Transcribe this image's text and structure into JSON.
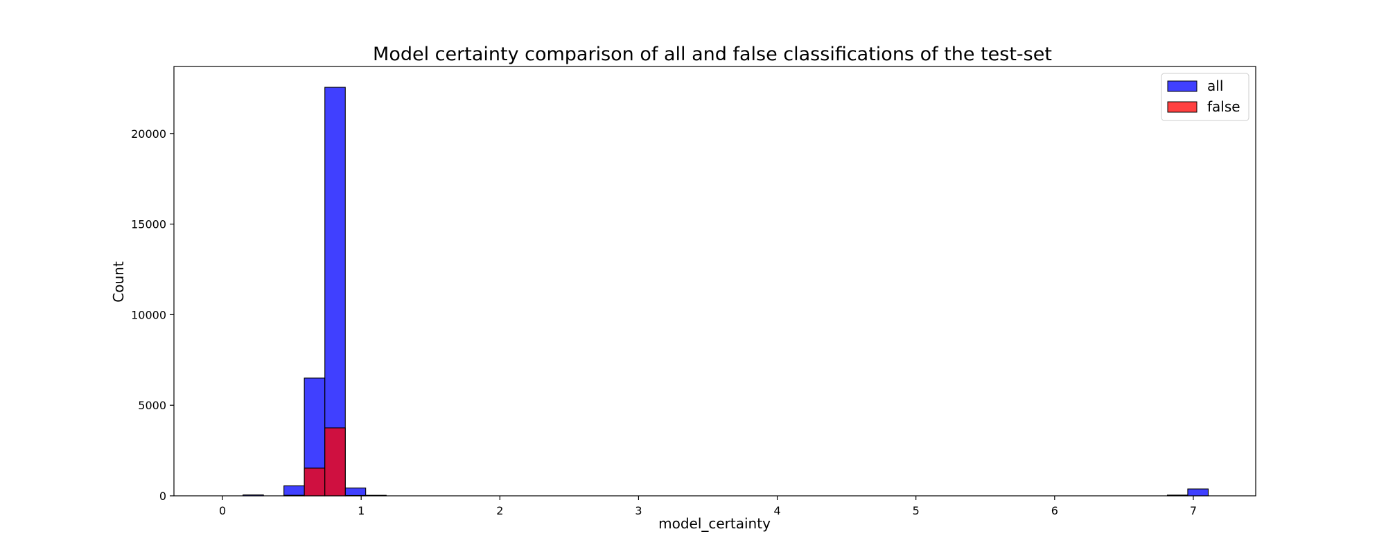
{
  "chart_data": {
    "type": "bar",
    "title": "Model certainty comparison of all and false classifications of the test-set",
    "xlabel": "model_certainty",
    "ylabel": "Count",
    "xlim": [
      -0.35,
      7.45
    ],
    "ylim": [
      0,
      23700
    ],
    "xticks": [
      0,
      1,
      2,
      3,
      4,
      5,
      6,
      7
    ],
    "yticks": [
      0,
      5000,
      10000,
      15000,
      20000
    ],
    "grid": false,
    "legend_position": "top-right",
    "bin_width": 0.1475,
    "series": [
      {
        "name": "all",
        "color": "#0000ff",
        "bins": [
          {
            "x0": 0.148,
            "count": 50
          },
          {
            "x0": 0.443,
            "count": 550
          },
          {
            "x0": 0.59,
            "count": 6500
          },
          {
            "x0": 0.738,
            "count": 22550
          },
          {
            "x0": 0.885,
            "count": 430
          },
          {
            "x0": 1.033,
            "count": 30
          },
          {
            "x0": 6.813,
            "count": 40
          },
          {
            "x0": 6.96,
            "count": 380
          }
        ]
      },
      {
        "name": "false",
        "color": "#ff0000",
        "bins": [
          {
            "x0": 0.443,
            "count": 30
          },
          {
            "x0": 0.59,
            "count": 1530
          },
          {
            "x0": 0.738,
            "count": 3750
          },
          {
            "x0": 0.885,
            "count": 20
          }
        ]
      }
    ]
  }
}
